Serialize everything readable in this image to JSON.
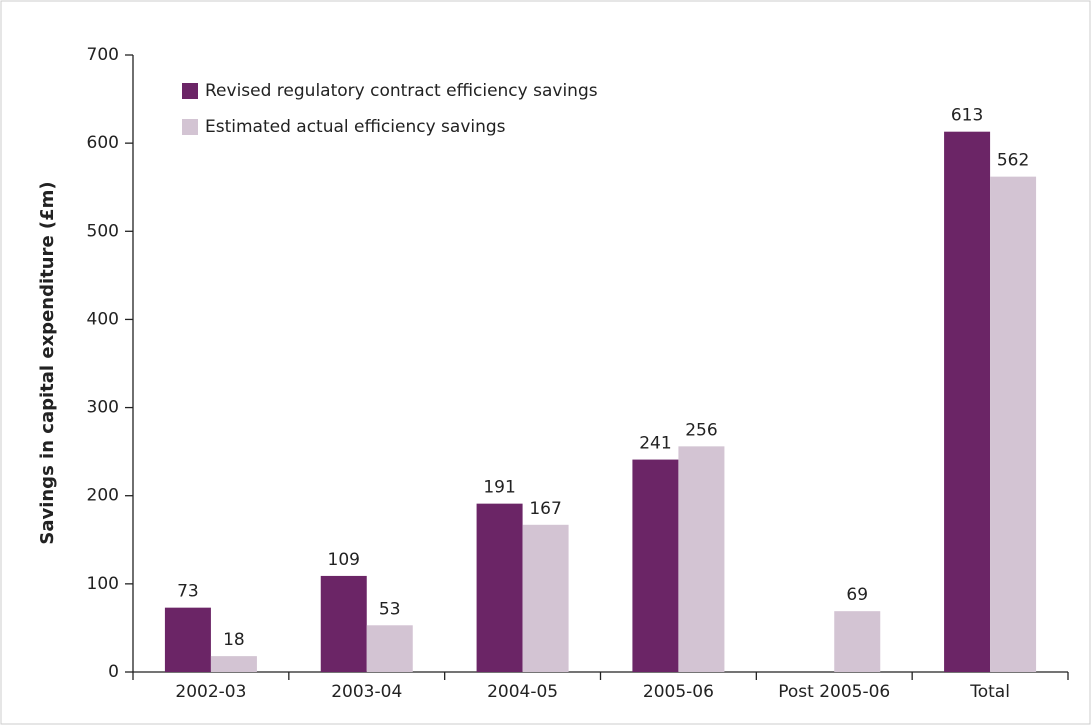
{
  "chart_data": {
    "type": "bar",
    "y_label": "Savings in capital expenditure (£m)",
    "categories": [
      "2002-03",
      "2003-04",
      "2004-05",
      "2005-06",
      "Post 2005-06",
      "Total"
    ],
    "series": [
      {
        "name": "Revised regulatory contract efficiency savings",
        "color": "#6b2566",
        "values": [
          73,
          109,
          191,
          241,
          null,
          613
        ]
      },
      {
        "name": "Estimated actual efficiency savings",
        "color": "#d3c4d3",
        "values": [
          18,
          53,
          167,
          256,
          69,
          562
        ]
      }
    ],
    "ylim": [
      0,
      700
    ],
    "yticks": [
      0,
      100,
      200,
      300,
      400,
      500,
      600,
      700
    ],
    "legend": "top-left"
  }
}
